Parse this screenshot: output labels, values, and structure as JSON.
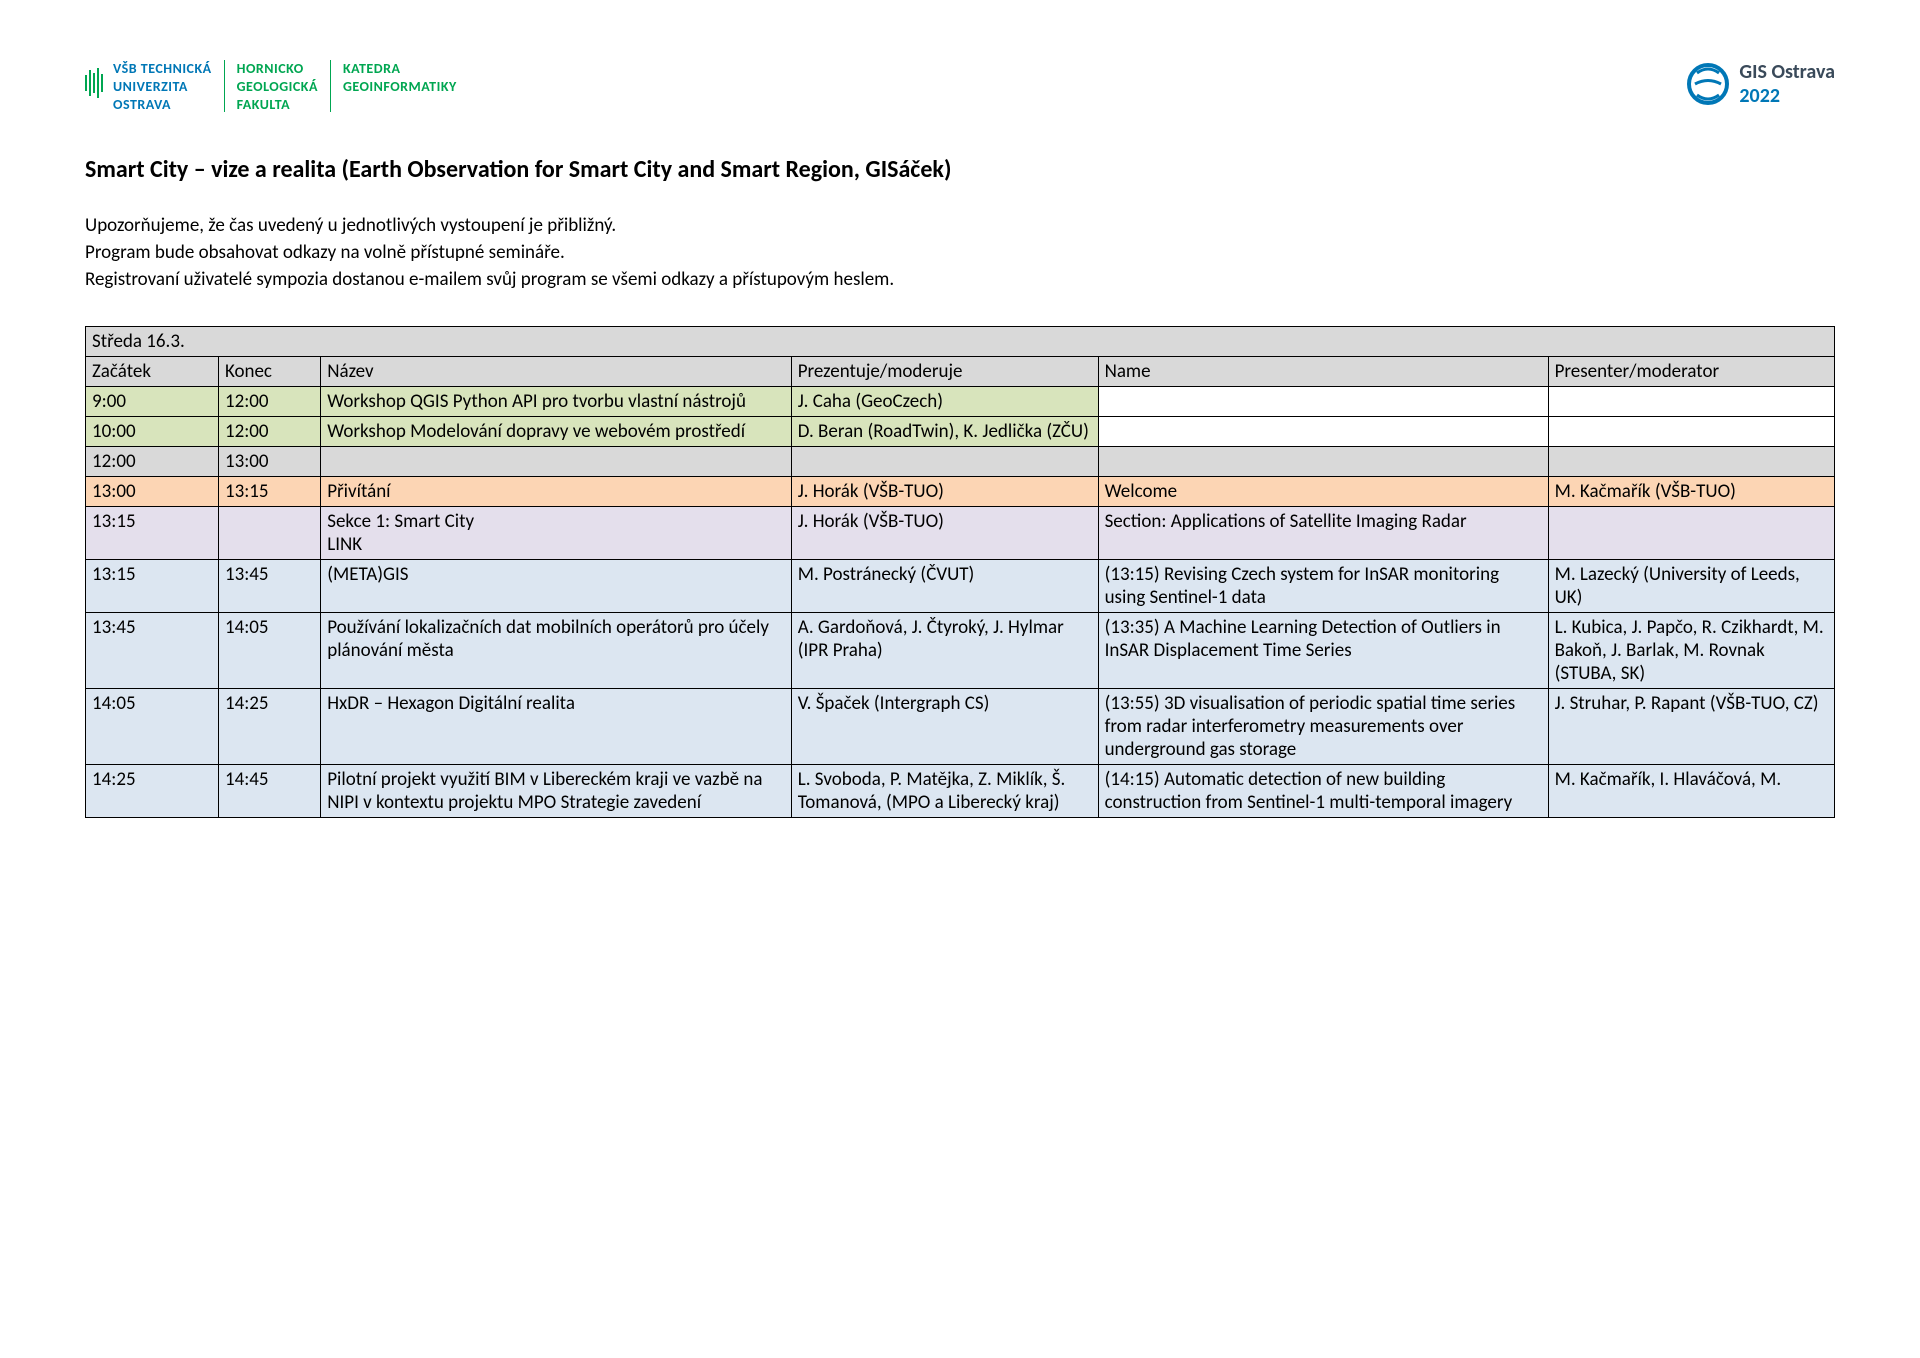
{
  "header": {
    "logo_left": {
      "col1": [
        "VŠB TECHNICKÁ",
        "UNIVERZITA",
        "OSTRAVA"
      ],
      "col2": [
        "HORNICKO",
        "GEOLOGICKÁ",
        "FAKULTA"
      ],
      "col3": [
        "KATEDRA",
        "GEOINFORMATIKY"
      ]
    },
    "logo_right": {
      "line1": "GIS Ostrava",
      "line2": "2022"
    }
  },
  "title": "Smart City – vize a realita (Earth Observation for Smart City and Smart Region, GISáček)",
  "intro": [
    "Upozorňujeme, že čas uvedený u jednotlivých vystoupení je přibližný.",
    "Program bude obsahovat odkazy na volně přístupné semináře.",
    "Registrovaní uživatelé sympozia dostanou e-mailem svůj program se všemi odkazy a přístupovým heslem."
  ],
  "table": {
    "date_header": "Středa 16.3.",
    "columns": [
      "Začátek",
      "Konec",
      "Název",
      "Prezentuje/moderuje",
      "Name",
      "Presenter/moderator"
    ],
    "rows": [
      {
        "cls": "row-green",
        "c1": "9:00",
        "c2": "12:00",
        "c3": "Workshop QGIS Python API pro tvorbu vlastní nástrojů",
        "c4": "J. Caha (GeoCzech)",
        "c5": "",
        "c6": "",
        "white56": true
      },
      {
        "cls": "row-green",
        "c1": "10:00",
        "c2": "12:00",
        "c3": "Workshop Modelování dopravy ve webovém prostředí",
        "c4": "D. Beran (RoadTwin), K. Jedlička (ZČU)",
        "c5": "",
        "c6": "",
        "white56": true
      },
      {
        "cls": "row-gray",
        "c1": "12:00",
        "c2": "13:00",
        "c3": "",
        "c4": "",
        "c5": "",
        "c6": ""
      },
      {
        "cls": "row-orange",
        "c1": "13:00",
        "c2": "13:15",
        "c3": "Přivítání",
        "c4": "J. Horák (VŠB-TUO)",
        "c5": "Welcome",
        "c6": "M. Kačmařík (VŠB-TUO)"
      },
      {
        "cls": "row-purple",
        "c1": "13:15",
        "c2": "",
        "c3": "Sekce 1: Smart City\nLINK",
        "c4": "J. Horák (VŠB-TUO)",
        "c5": "Section: Applications of Satellite Imaging Radar",
        "c6": ""
      },
      {
        "cls": "row-blue",
        "c1": "13:15",
        "c2": "13:45",
        "c3": "(META)GIS",
        "c4": "M. Postránecký (ČVUT)",
        "c5": "(13:15) Revising Czech system for InSAR monitoring using Sentinel-1 data",
        "c6": "M. Lazecký (University of Leeds, UK)"
      },
      {
        "cls": "row-blue",
        "c1": "13:45",
        "c2": "14:05",
        "c3": "Používání lokalizačních dat mobilních operátorů pro účely plánování města",
        "c4": "A. Gardoňová, J. Čtyroký, J. Hylmar (IPR Praha)",
        "c5": "(13:35) A Machine Learning Detection of Outliers in InSAR Displacement Time Series",
        "c6": "L. Kubica, J. Papčo, R. Czikhardt, M. Bakoň, J. Barlak, M. Rovnak (STUBA, SK)"
      },
      {
        "cls": "row-blue",
        "c1": "14:05",
        "c2": "14:25",
        "c3": "HxDR – Hexagon Digitální realita",
        "c4": "V. Špaček (Intergraph CS)",
        "c5": "(13:55) 3D visualisation of periodic spatial time series from radar interferometry measurements over underground gas storage",
        "c6": "J. Struhar, P. Rapant (VŠB-TUO, CZ)"
      },
      {
        "cls": "row-blue",
        "c1": "14:25",
        "c2": "14:45",
        "c3": "Pilotní projekt využití BIM v Libereckém kraji ve vazbě na NIPI v kontextu projektu MPO Strategie zavedení",
        "c4": "L. Svoboda, P. Matějka, Z. Miklík, Š. Tomanová, (MPO a Liberecký kraj)",
        "c5": "(14:15) Automatic detection of new building construction from Sentinel-1 multi-temporal imagery",
        "c6": "M. Kačmařík, I. Hlaváčová, M."
      }
    ]
  }
}
